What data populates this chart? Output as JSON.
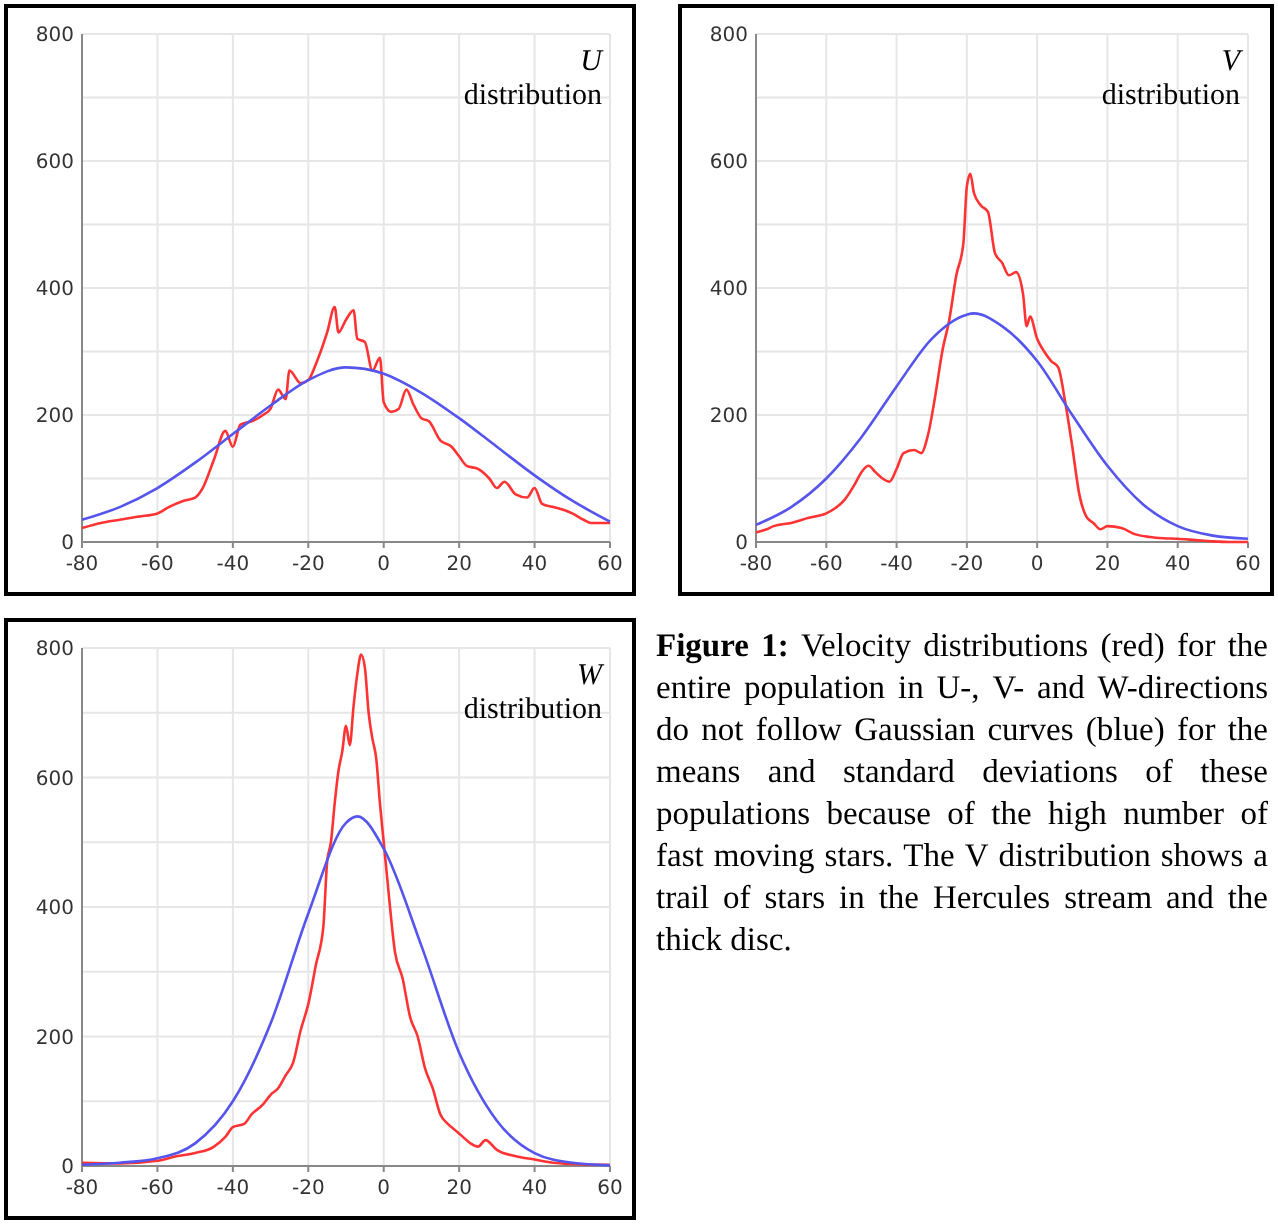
{
  "chart_data": [
    {
      "type": "line",
      "title": "U distribution",
      "xlim": [
        -80,
        60
      ],
      "xticks": [
        -80,
        -60,
        -40,
        -20,
        0,
        20,
        40,
        60
      ],
      "ylim": [
        0,
        800
      ],
      "yticks": [
        0,
        {
          "value": 100,
          "label": null
        },
        200,
        {
          "value": 300,
          "label": null
        },
        400,
        {
          "value": 500,
          "label": null
        },
        600,
        {
          "value": 700,
          "label": null
        },
        800
      ],
      "grid": true,
      "series": [
        {
          "color": "#ff3333",
          "x": [
            -80,
            -75,
            -70,
            -65,
            -60,
            -57,
            -53,
            -50,
            -48,
            -45,
            -42,
            -40,
            -38,
            -35,
            -32,
            -30,
            -28,
            -26,
            -25,
            -22,
            -20,
            -18,
            -15,
            -13,
            -12,
            -10,
            -8,
            -7,
            -5,
            -3,
            -1,
            0,
            2,
            4,
            6,
            8,
            10,
            12,
            15,
            18,
            20,
            22,
            25,
            28,
            30,
            32,
            35,
            38,
            40,
            42,
            45,
            48,
            50,
            53,
            55,
            58,
            60
          ],
          "values": [
            22,
            30,
            35,
            40,
            45,
            55,
            65,
            70,
            85,
            130,
            175,
            150,
            185,
            190,
            200,
            210,
            240,
            225,
            270,
            250,
            255,
            280,
            330,
            370,
            330,
            350,
            365,
            320,
            315,
            270,
            290,
            220,
            205,
            210,
            240,
            215,
            195,
            190,
            160,
            150,
            135,
            120,
            115,
            100,
            85,
            95,
            75,
            70,
            85,
            60,
            55,
            50,
            45,
            35,
            30,
            30,
            30
          ]
        },
        {
          "color": "#5555ee",
          "x": [
            -80,
            -70,
            -60,
            -50,
            -40,
            -30,
            -20,
            -10,
            0,
            10,
            20,
            30,
            40,
            50,
            60
          ],
          "values": [
            35,
            55,
            85,
            125,
            170,
            215,
            255,
            275,
            265,
            235,
            195,
            150,
            105,
            65,
            32
          ]
        }
      ]
    },
    {
      "type": "line",
      "title": "V distribution",
      "xlim": [
        -80,
        60
      ],
      "xticks": [
        -80,
        -60,
        -40,
        -20,
        0,
        20,
        40,
        60
      ],
      "ylim": [
        0,
        800
      ],
      "yticks": [
        0,
        {
          "value": 100,
          "label": null
        },
        200,
        {
          "value": 300,
          "label": null
        },
        400,
        {
          "value": 500,
          "label": null
        },
        600,
        {
          "value": 700,
          "label": null
        },
        800
      ],
      "grid": true,
      "series": [
        {
          "color": "#ff3333",
          "x": [
            -80,
            -77,
            -75,
            -70,
            -65,
            -60,
            -57,
            -55,
            -52,
            -50,
            -48,
            -46,
            -44,
            -42,
            -40,
            -38,
            -35,
            -33,
            -31,
            -29,
            -27,
            -25,
            -23,
            -21,
            -20,
            -19,
            -18,
            -16,
            -14,
            -12,
            -10,
            -8,
            -6,
            -4,
            -3,
            -2,
            0,
            2,
            4,
            6,
            8,
            10,
            12,
            14,
            16,
            18,
            20,
            24,
            28,
            32,
            36,
            40,
            45,
            50,
            55,
            60
          ],
          "values": [
            15,
            20,
            25,
            30,
            38,
            45,
            55,
            65,
            90,
            110,
            120,
            110,
            100,
            95,
            115,
            140,
            145,
            140,
            170,
            230,
            300,
            350,
            420,
            470,
            560,
            580,
            550,
            530,
            520,
            455,
            440,
            420,
            425,
            390,
            340,
            355,
            320,
            300,
            285,
            275,
            220,
            150,
            75,
            40,
            30,
            20,
            25,
            22,
            12,
            8,
            6,
            5,
            3,
            1,
            0,
            0
          ]
        },
        {
          "color": "#5555ee",
          "x": [
            -80,
            -70,
            -60,
            -50,
            -40,
            -30,
            -20,
            -18,
            -10,
            0,
            10,
            20,
            30,
            40,
            50,
            60
          ],
          "values": [
            27,
            55,
            100,
            165,
            245,
            320,
            358,
            360,
            340,
            285,
            200,
            120,
            60,
            25,
            10,
            5
          ]
        }
      ]
    },
    {
      "type": "line",
      "title": "W distribution",
      "xlim": [
        -80,
        60
      ],
      "xticks": [
        -80,
        -60,
        -40,
        -20,
        0,
        20,
        40,
        60
      ],
      "ylim": [
        0,
        800
      ],
      "yticks": [
        0,
        {
          "value": 100,
          "label": null
        },
        200,
        {
          "value": 300,
          "label": null
        },
        400,
        {
          "value": 500,
          "label": null
        },
        600,
        {
          "value": 700,
          "label": null
        },
        800
      ],
      "grid": true,
      "series": [
        {
          "color": "#ff3333",
          "x": [
            -80,
            -70,
            -60,
            -55,
            -50,
            -45,
            -42,
            -40,
            -37,
            -35,
            -32,
            -30,
            -28,
            -26,
            -24,
            -22,
            -20,
            -18,
            -16,
            -15,
            -14,
            -13,
            -12,
            -11,
            -10,
            -9,
            -8,
            -7,
            -6,
            -5,
            -4,
            -3,
            -2,
            -1,
            0,
            1,
            3,
            5,
            7,
            9,
            11,
            13,
            15,
            17,
            19,
            21,
            23,
            25,
            27,
            30,
            35,
            40,
            45,
            50,
            55,
            60
          ],
          "values": [
            5,
            4,
            8,
            15,
            20,
            30,
            45,
            60,
            65,
            80,
            95,
            110,
            120,
            140,
            160,
            210,
            250,
            310,
            370,
            470,
            500,
            560,
            610,
            640,
            680,
            650,
            710,
            760,
            790,
            770,
            700,
            660,
            630,
            560,
            500,
            440,
            330,
            290,
            230,
            200,
            150,
            120,
            80,
            65,
            55,
            45,
            35,
            30,
            40,
            25,
            15,
            10,
            5,
            3,
            2,
            2
          ]
        },
        {
          "color": "#5555ee",
          "x": [
            -80,
            -70,
            -60,
            -50,
            -40,
            -30,
            -20,
            -10,
            -7,
            0,
            10,
            20,
            30,
            40,
            50,
            60
          ],
          "values": [
            2,
            5,
            12,
            35,
            100,
            220,
            390,
            530,
            540,
            490,
            340,
            175,
            70,
            20,
            5,
            1
          ]
        }
      ]
    },
    {
      "type": "other",
      "annotations": [
        "Figure 1:",
        "Velocity distributions (red) for the entire population in U-, V- and W-directions do not follow Gaussian curves (blue) for the means and standard deviations of these populations because of the high number of fast moving stars. The V distribution shows a trail of stars in the Hercules stream and the thick disc."
      ]
    }
  ]
}
